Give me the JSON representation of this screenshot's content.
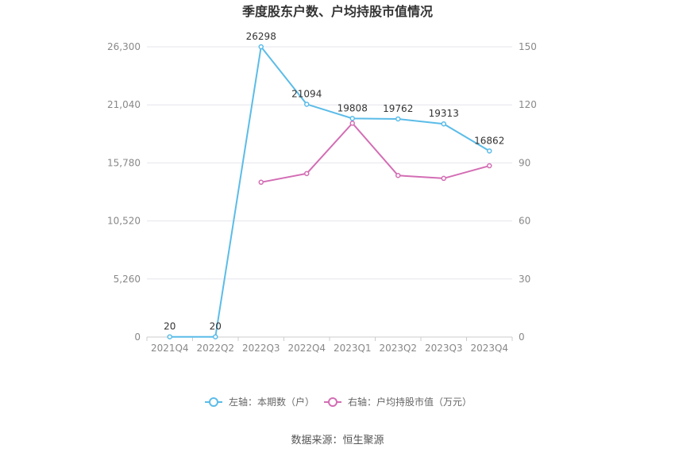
{
  "chart_data": {
    "type": "line",
    "title": "季度股东户数、户均持股市值情况",
    "categories": [
      "2021Q4",
      "2022Q2",
      "2022Q3",
      "2022Q4",
      "2023Q1",
      "2023Q2",
      "2023Q3",
      "2023Q4"
    ],
    "left_axis": {
      "ticks": [
        "0",
        "5,260",
        "10,520",
        "15,780",
        "21,040",
        "26,300"
      ],
      "min": 0,
      "max": 26300
    },
    "right_axis": {
      "ticks": [
        "0",
        "30",
        "60",
        "90",
        "120",
        "150"
      ],
      "min": 0,
      "max": 150
    },
    "series": [
      {
        "name": "左轴：本期数（户）",
        "axis": "left",
        "color": "#5bbce8",
        "values": [
          20,
          20,
          26298,
          21094,
          19808,
          19762,
          19313,
          16862
        ],
        "labels": [
          "20",
          "20",
          "26298",
          "21094",
          "19808",
          "19762",
          "19313",
          "16862"
        ]
      },
      {
        "name": "右轴：户均持股市值（万元）",
        "axis": "right",
        "color": "#d36db4",
        "values": [
          null,
          null,
          80,
          84.5,
          110.5,
          83.5,
          82,
          88.5
        ]
      }
    ],
    "grid": true,
    "legend_position": "bottom"
  },
  "source": "数据来源：恒生聚源"
}
